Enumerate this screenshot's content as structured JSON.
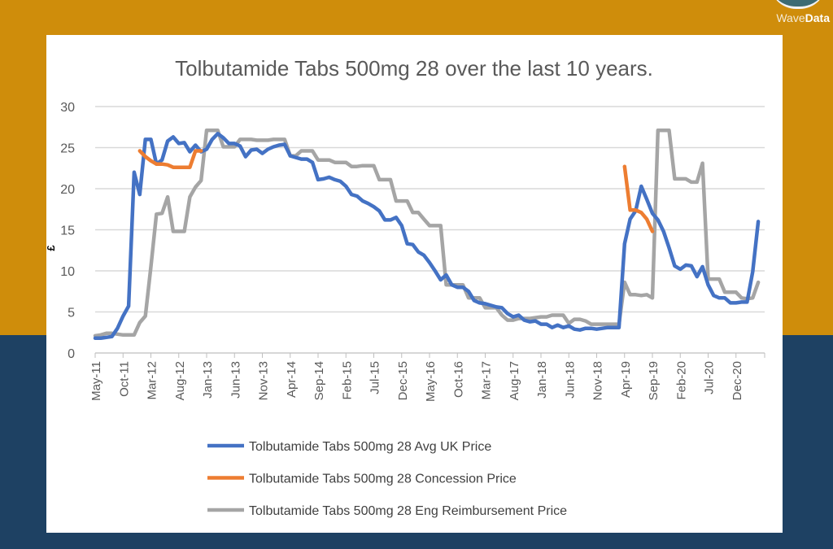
{
  "branding": {
    "logo_text_light": "Wave",
    "logo_text_bold": "Data"
  },
  "colors": {
    "avg": "#4472c4",
    "concession": "#ed7d31",
    "reimbursement": "#a5a5a5",
    "background_top": "#cf8d0b",
    "background_bottom": "#1e4163"
  },
  "chart_data": {
    "type": "line",
    "title": "Tolbutamide Tabs 500mg 28 over the last 10 years.",
    "ylabel": "£",
    "xlabel": "",
    "ylim": [
      0,
      30
    ],
    "yticks": [
      "0",
      "5",
      "10",
      "15",
      "20",
      "25",
      "30"
    ],
    "grid": true,
    "legend_placement": "bottom",
    "x_start": "May-11",
    "x_end": "Apr-21",
    "xtick_labels": [
      "May-11",
      "Oct-11",
      "Mar-12",
      "Aug-12",
      "Jan-13",
      "Jun-13",
      "Nov-13",
      "Apr-14",
      "Sep-14",
      "Feb-15",
      "Jul-15",
      "Dec-15",
      "May-16",
      "Oct-16",
      "Mar-17",
      "Aug-17",
      "Jan-18",
      "Jun-18",
      "Nov-18",
      "Apr-19",
      "Sep-19",
      "Feb-20",
      "Jul-20",
      "Dec-20"
    ],
    "series": [
      {
        "name": "Tolbutamide Tabs 500mg 28 Avg UK Price",
        "color": "#4472c4",
        "values": [
          1.8,
          1.8,
          1.9,
          2.0,
          3.0,
          4.5,
          5.7,
          22,
          19.3,
          26,
          26,
          23,
          23.5,
          25.8,
          26.3,
          25.5,
          25.6,
          24.5,
          25.3,
          24.5,
          24.8,
          26,
          26.7,
          26.2,
          25.5,
          25.5,
          25.2,
          23.9,
          24.7,
          24.8,
          24.3,
          24.8,
          25.1,
          25.3,
          25.4,
          24,
          23.8,
          23.6,
          23.6,
          23.2,
          21.1,
          21.2,
          21.4,
          21.1,
          20.9,
          20.3,
          19.3,
          19.1,
          18.5,
          18.2,
          17.8,
          17.3,
          16.2,
          16.2,
          16.5,
          15.5,
          13.3,
          13.2,
          12.3,
          11.9,
          11.0,
          10.0,
          8.9,
          9.5,
          8.3,
          8.0,
          8.0,
          7.5,
          6.4,
          6.1,
          6.0,
          5.8,
          5.6,
          5.5,
          4.8,
          4.4,
          4.6,
          4.0,
          3.8,
          3.9,
          3.5,
          3.5,
          3.1,
          3.4,
          3.1,
          3.3,
          2.9,
          2.8,
          3.0,
          3.0,
          2.9,
          3.0,
          3.1,
          3.1,
          3.1,
          13.3,
          16.3,
          17.3,
          20.3,
          18.7,
          17.0,
          16.2,
          14.8,
          12.8,
          10.6,
          10.2,
          10.7,
          10.6,
          9.3,
          10.5,
          8.3,
          7.0,
          6.7,
          6.7,
          6.1,
          6.1,
          6.2,
          6.2,
          9.9,
          16.0
        ]
      },
      {
        "name": "Tolbutamide Tabs 500mg 28 Concession Price",
        "color": "#ed7d31",
        "values": [
          null,
          null,
          null,
          null,
          null,
          null,
          null,
          null,
          24.6,
          23.9,
          23.4,
          23.0,
          23.0,
          22.9,
          22.6,
          22.6,
          22.6,
          22.6,
          24.6,
          24.6,
          null,
          null,
          null,
          null,
          null,
          null,
          null,
          null,
          null,
          null,
          null,
          null,
          null,
          null,
          null,
          null,
          null,
          null,
          null,
          null,
          null,
          null,
          null,
          null,
          null,
          null,
          null,
          null,
          null,
          null,
          null,
          null,
          null,
          null,
          null,
          null,
          null,
          null,
          null,
          null,
          null,
          null,
          null,
          null,
          null,
          null,
          null,
          null,
          null,
          null,
          null,
          null,
          null,
          null,
          null,
          null,
          null,
          null,
          null,
          null,
          null,
          null,
          null,
          null,
          null,
          null,
          null,
          null,
          null,
          null,
          null,
          null,
          null,
          null,
          null,
          22.7,
          17.4,
          17.4,
          17.1,
          16.3,
          14.8,
          null,
          null,
          null,
          null,
          null,
          null,
          null,
          null,
          null,
          null,
          null,
          null,
          null,
          null,
          null,
          null,
          null,
          null,
          null
        ]
      },
      {
        "name": "Tolbutamide Tabs 500mg 28 Eng Reimbursement Price",
        "color": "#a5a5a5",
        "values": [
          2.1,
          2.2,
          2.4,
          2.4,
          2.3,
          2.2,
          2.2,
          2.2,
          3.7,
          4.5,
          10.5,
          16.9,
          17.0,
          19.0,
          14.8,
          14.8,
          14.8,
          19.0,
          20.2,
          21.0,
          27.1,
          27.1,
          27.1,
          25.1,
          25.1,
          25.1,
          26.0,
          26.0,
          26.0,
          25.9,
          25.9,
          25.9,
          26.0,
          26.0,
          26.0,
          24.0,
          24.0,
          24.6,
          24.6,
          24.6,
          23.5,
          23.5,
          23.5,
          23.2,
          23.2,
          23.2,
          22.7,
          22.7,
          22.8,
          22.8,
          22.8,
          21.1,
          21.1,
          21.1,
          18.5,
          18.5,
          18.5,
          17.1,
          17.1,
          16.3,
          15.5,
          15.5,
          15.5,
          8.3,
          8.3,
          8.3,
          8.3,
          6.7,
          6.7,
          6.7,
          5.5,
          5.5,
          5.5,
          4.6,
          4.0,
          4.0,
          4.2,
          4.2,
          4.2,
          4.3,
          4.4,
          4.4,
          4.6,
          4.6,
          4.6,
          3.6,
          4.1,
          4.1,
          3.9,
          3.5,
          3.5,
          3.5,
          3.5,
          3.5,
          3.5,
          8.6,
          7.1,
          7.1,
          7.0,
          7.1,
          6.7,
          27.1,
          27.1,
          27.1,
          21.2,
          21.2,
          21.2,
          20.8,
          20.8,
          23.1,
          9.0,
          9.0,
          9.0,
          7.4,
          7.4,
          7.4,
          6.7,
          6.6,
          6.7,
          8.6
        ]
      }
    ]
  }
}
